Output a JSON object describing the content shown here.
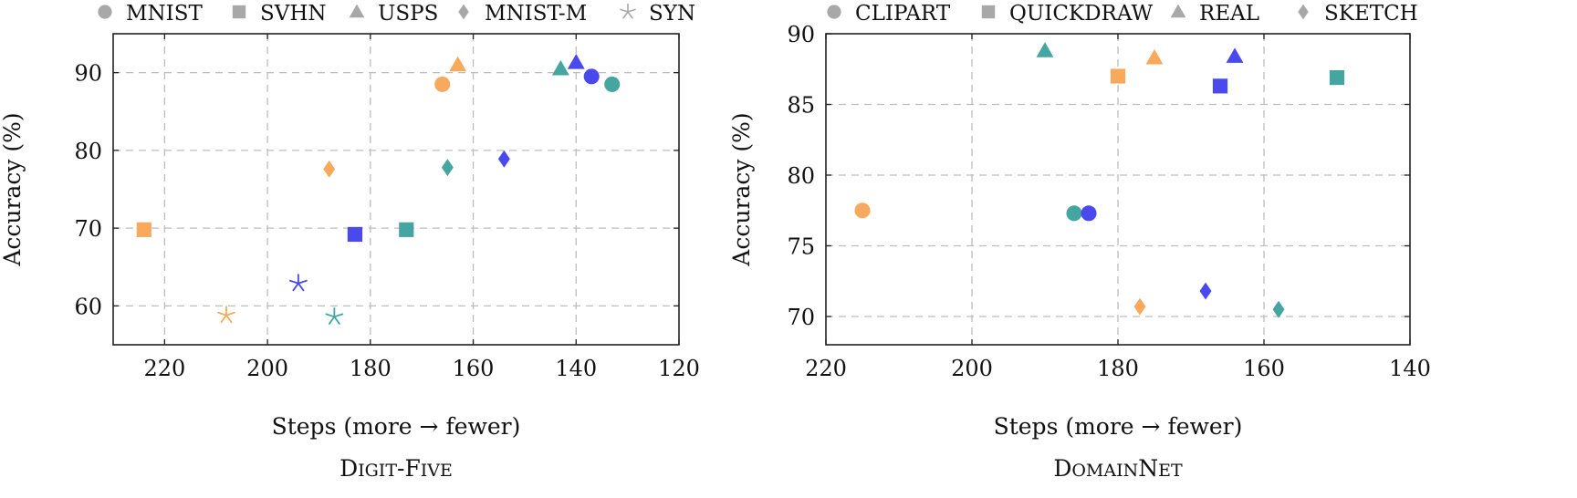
{
  "colors": {
    "orange": "#F8A95C",
    "blue": "#4949EE",
    "teal": "#45A6A1",
    "legend_gray": "#A8A8A8",
    "grid": "#BDBDBD"
  },
  "chart_data": [
    {
      "type": "scatter",
      "title": "Digit-Five",
      "xlabel": "Steps (more → fewer)",
      "ylabel": "Accuracy (%)",
      "xlim": [
        230,
        120
      ],
      "ylim": [
        55,
        95
      ],
      "x_reversed": true,
      "x_ticks": [
        220,
        200,
        180,
        160,
        140,
        120
      ],
      "y_ticks": [
        60,
        70,
        80,
        90
      ],
      "grid": true,
      "legend_position": "top",
      "legend": [
        {
          "label": "MNIST",
          "marker": "circle"
        },
        {
          "label": "SVHN",
          "marker": "square"
        },
        {
          "label": "USPS",
          "marker": "triangle"
        },
        {
          "label": "MNIST-M",
          "marker": "diamond"
        },
        {
          "label": "SYN",
          "marker": "star"
        }
      ],
      "points": [
        {
          "marker": "circle",
          "color": "orange",
          "x": 166,
          "y": 88.5
        },
        {
          "marker": "circle",
          "color": "blue",
          "x": 137,
          "y": 89.5
        },
        {
          "marker": "circle",
          "color": "teal",
          "x": 133,
          "y": 88.5
        },
        {
          "marker": "square",
          "color": "orange",
          "x": 224,
          "y": 69.8
        },
        {
          "marker": "square",
          "color": "blue",
          "x": 183,
          "y": 69.2
        },
        {
          "marker": "square",
          "color": "teal",
          "x": 173,
          "y": 69.8
        },
        {
          "marker": "triangle",
          "color": "orange",
          "x": 163,
          "y": 91.0
        },
        {
          "marker": "triangle",
          "color": "teal",
          "x": 143,
          "y": 90.5
        },
        {
          "marker": "triangle",
          "color": "blue",
          "x": 140,
          "y": 91.3
        },
        {
          "marker": "diamond",
          "color": "orange",
          "x": 188,
          "y": 77.6
        },
        {
          "marker": "diamond",
          "color": "teal",
          "x": 165,
          "y": 77.8
        },
        {
          "marker": "diamond",
          "color": "blue",
          "x": 154,
          "y": 78.9
        },
        {
          "marker": "star",
          "color": "orange",
          "x": 208,
          "y": 58.8
        },
        {
          "marker": "star",
          "color": "blue",
          "x": 194,
          "y": 62.9
        },
        {
          "marker": "star",
          "color": "teal",
          "x": 187,
          "y": 58.6
        }
      ]
    },
    {
      "type": "scatter",
      "title": "DomainNet",
      "xlabel": "Steps (more → fewer)",
      "ylabel": "Accuracy (%)",
      "xlim": [
        220,
        140
      ],
      "ylim": [
        68,
        90
      ],
      "x_reversed": true,
      "x_ticks": [
        220,
        200,
        180,
        160,
        140
      ],
      "y_ticks": [
        70,
        75,
        80,
        85,
        90
      ],
      "grid": true,
      "legend_position": "top",
      "legend": [
        {
          "label": "CLIPART",
          "marker": "circle"
        },
        {
          "label": "QUICKDRAW",
          "marker": "square"
        },
        {
          "label": "REAL",
          "marker": "triangle"
        },
        {
          "label": "SKETCH",
          "marker": "diamond"
        }
      ],
      "points": [
        {
          "marker": "circle",
          "color": "orange",
          "x": 215,
          "y": 77.5
        },
        {
          "marker": "circle",
          "color": "teal",
          "x": 186,
          "y": 77.3
        },
        {
          "marker": "circle",
          "color": "blue",
          "x": 184,
          "y": 77.3
        },
        {
          "marker": "square",
          "color": "orange",
          "x": 180,
          "y": 87.0
        },
        {
          "marker": "square",
          "color": "blue",
          "x": 166,
          "y": 86.3
        },
        {
          "marker": "square",
          "color": "teal",
          "x": 150,
          "y": 86.9
        },
        {
          "marker": "triangle",
          "color": "teal",
          "x": 190,
          "y": 88.8
        },
        {
          "marker": "triangle",
          "color": "orange",
          "x": 175,
          "y": 88.3
        },
        {
          "marker": "triangle",
          "color": "blue",
          "x": 164,
          "y": 88.4
        },
        {
          "marker": "diamond",
          "color": "orange",
          "x": 177,
          "y": 70.7
        },
        {
          "marker": "diamond",
          "color": "blue",
          "x": 168,
          "y": 71.8
        },
        {
          "marker": "diamond",
          "color": "teal",
          "x": 158,
          "y": 70.5
        }
      ]
    }
  ]
}
